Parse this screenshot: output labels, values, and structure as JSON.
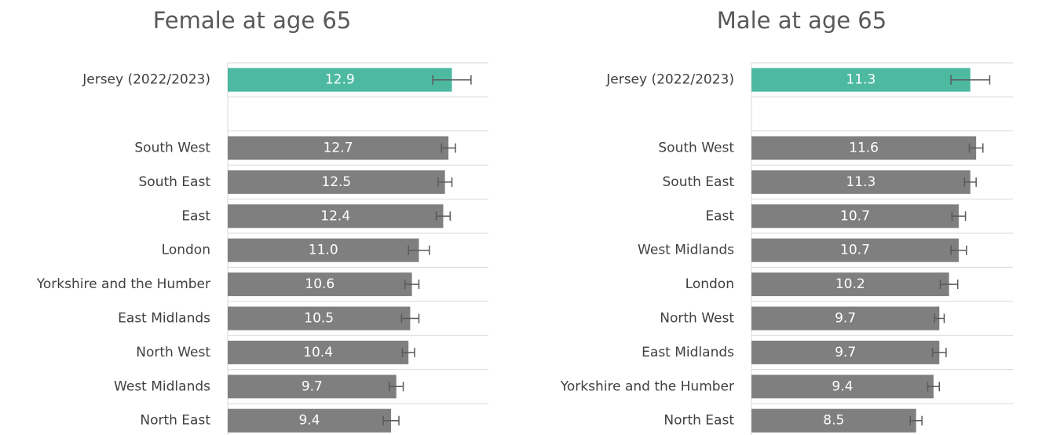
{
  "chart_data": [
    {
      "type": "bar",
      "orientation": "horizontal",
      "title": "Female at age 65",
      "categories": [
        "Jersey (2022/2023)",
        null,
        "South West",
        "South East",
        "East",
        "London",
        "Yorkshire and the Humber",
        "East Midlands",
        "North West",
        "West Midlands",
        "North East"
      ],
      "values": [
        12.9,
        null,
        12.7,
        12.5,
        12.4,
        11.0,
        10.6,
        10.5,
        10.4,
        9.7,
        9.4
      ],
      "value_labels": [
        "12.9",
        null,
        "12.7",
        "12.5",
        "12.4",
        "11.0",
        "10.6",
        "10.5",
        "10.4",
        "9.7",
        "9.4"
      ],
      "errors": [
        1.1,
        null,
        0.4,
        0.4,
        0.4,
        0.6,
        0.4,
        0.5,
        0.35,
        0.4,
        0.45
      ],
      "colors": [
        "#4cb9a0",
        null,
        "#7f7f7f",
        "#7f7f7f",
        "#7f7f7f",
        "#7f7f7f",
        "#7f7f7f",
        "#7f7f7f",
        "#7f7f7f",
        "#7f7f7f",
        "#7f7f7f"
      ],
      "xlim": [
        0,
        15
      ],
      "grid": true
    },
    {
      "type": "bar",
      "orientation": "horizontal",
      "title": "Male at age 65",
      "categories": [
        "Jersey (2022/2023)",
        null,
        "South West",
        "South East",
        "East",
        "West Midlands",
        "London",
        "North West",
        "East Midlands",
        "Yorkshire and the Humber",
        "North East"
      ],
      "values": [
        11.3,
        null,
        11.6,
        11.3,
        10.7,
        10.7,
        10.2,
        9.7,
        9.7,
        9.4,
        8.5
      ],
      "value_labels": [
        "11.3",
        null,
        "11.6",
        "11.3",
        "10.7",
        "10.7",
        "10.2",
        "9.7",
        "9.7",
        "9.4",
        "8.5"
      ],
      "errors": [
        1.0,
        null,
        0.35,
        0.3,
        0.35,
        0.4,
        0.45,
        0.25,
        0.35,
        0.3,
        0.3
      ],
      "colors": [
        "#4cb9a0",
        null,
        "#7f7f7f",
        "#7f7f7f",
        "#7f7f7f",
        "#7f7f7f",
        "#7f7f7f",
        "#7f7f7f",
        "#7f7f7f",
        "#7f7f7f",
        "#7f7f7f"
      ],
      "xlim": [
        0,
        13.5
      ],
      "grid": true
    }
  ]
}
